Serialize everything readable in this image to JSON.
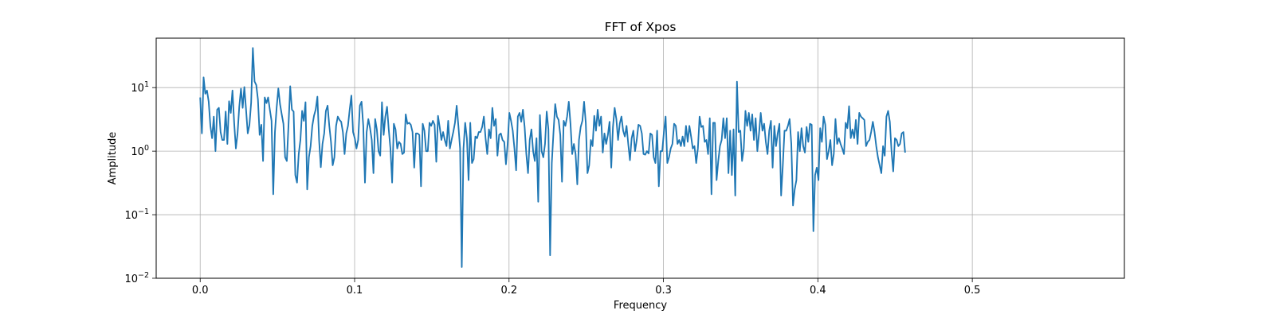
{
  "chart_data": {
    "type": "line",
    "title": "FFT of Xpos",
    "xlabel": "Frequency",
    "ylabel": "Amplitude",
    "xlim": [
      -0.0285,
      0.5985
    ],
    "ylim": [
      0.01,
      60
    ],
    "yscale": "log",
    "grid": true,
    "line_color": "#1f77b4",
    "x_ticks": [
      {
        "value": 0.0,
        "label": "0.0"
      },
      {
        "value": 0.1,
        "label": "0.1"
      },
      {
        "value": 0.2,
        "label": "0.2"
      },
      {
        "value": 0.3,
        "label": "0.3"
      },
      {
        "value": 0.4,
        "label": "0.4"
      },
      {
        "value": 0.5,
        "label": "0.5"
      }
    ],
    "y_ticks": [
      {
        "value": 0.01,
        "base": "10",
        "exp": "−2"
      },
      {
        "value": 0.1,
        "base": "10",
        "exp": "−1"
      },
      {
        "value": 1,
        "base": "10",
        "exp": "0"
      },
      {
        "value": 10,
        "base": "10",
        "exp": "1"
      }
    ],
    "x_step": 0.0011,
    "y_values": [
      7,
      1.9,
      14.5,
      8,
      9,
      6,
      2.5,
      1.6,
      3.5,
      1,
      4.5,
      4.8,
      2,
      1.5,
      1.5,
      4.2,
      1.3,
      6.1,
      4,
      9,
      2.8,
      1.1,
      1.9,
      5,
      9.6,
      4.8,
      10.2,
      4.5,
      1.9,
      2.6,
      5.8,
      42,
      12.5,
      11,
      6.5,
      1.8,
      2.6,
      0.7,
      7,
      5.7,
      7,
      4.5,
      3,
      0.21,
      2,
      4.8,
      9.7,
      5.5,
      3.8,
      2.7,
      0.8,
      0.7,
      2.6,
      10.5,
      4.5,
      4.2,
      0.42,
      0.32,
      0.9,
      1.5,
      4.3,
      3,
      5.9,
      0.25,
      0.8,
      1.2,
      2.5,
      3.6,
      4.5,
      7.2,
      1.5,
      0.56,
      1.3,
      1.9,
      4.3,
      5.2,
      2.5,
      1.4,
      0.6,
      0.8,
      2.5,
      3.5,
      3.1,
      2.9,
      2,
      0.9,
      1.9,
      2.5,
      4.5,
      7.5,
      2,
      1.6,
      1.1,
      1.5,
      5.2,
      6,
      2.5,
      0.32,
      2,
      3.2,
      2.3,
      1.5,
      0.45,
      3.2,
      2.2,
      1,
      0.85,
      5.9,
      1.8,
      3.5,
      5,
      2.2,
      1.1,
      0.32,
      2.7,
      2.2,
      1.1,
      1.4,
      1.3,
      0.9,
      0.95,
      3.8,
      2.7,
      2.8,
      2.6,
      2,
      0.55,
      1.9,
      1.9,
      1.8,
      0.28,
      2.7,
      2.1,
      1,
      1,
      2.8,
      2.5,
      3,
      2.6,
      0.68,
      3.6,
      2.4,
      1.5,
      2,
      1.5,
      1.2,
      3,
      1.1,
      1.5,
      2,
      2.8,
      5.2,
      2.5,
      1.1,
      0.015,
      1.1,
      2.8,
      1.6,
      0.35,
      2.8,
      0.65,
      0.75,
      1.7,
      1.6,
      2,
      2,
      2.4,
      3.5,
      1.6,
      0.9,
      2.2,
      1.6,
      4.8,
      2.5,
      3.2,
      0.85,
      1.8,
      1.9,
      1.5,
      1.4,
      0.62,
      1.3,
      4,
      3,
      2.1,
      1.1,
      0.5,
      3.5,
      4,
      2.9,
      4.5,
      2.4,
      0.9,
      0.45,
      1.5,
      2.2,
      1,
      0.7,
      1.6,
      0.16,
      3.7,
      1,
      0.8,
      1.3,
      4.2,
      2.2,
      0.023,
      0.65,
      2,
      5.5,
      3.5,
      3.1,
      1.8,
      0.33,
      3,
      2.5,
      3.5,
      6,
      2.7,
      0.9,
      1.3,
      0.9,
      0.3,
      1.5,
      2.4,
      3,
      6,
      2.8,
      0.45,
      0.6,
      1.5,
      1.2,
      3.6,
      2.1,
      4.5,
      2.5,
      3.5,
      0.95,
      1.9,
      1.3,
      1.8,
      2.9,
      0.55,
      2.4,
      4.8,
      3.2,
      1.5,
      2.7,
      3.5,
      2.1,
      1.7,
      2.5,
      1.3,
      0.72,
      1.6,
      2.1,
      1,
      1.5,
      2.6,
      2.5,
      1.9,
      0.9,
      0.88,
      1,
      0.92,
      1.9,
      1.8,
      0.8,
      0.65,
      2.1,
      0.28,
      1,
      1,
      2,
      3.5,
      0.65,
      0.8,
      1.1,
      1.3,
      2.7,
      2.5,
      1.3,
      1.5,
      1.2,
      1.7,
      1.2,
      2.5,
      1.4,
      2.5,
      1.7,
      1.1,
      1.2,
      0.65,
      1.1,
      3.5,
      2.4,
      2.5,
      1.4,
      1.5,
      0.9,
      3.3,
      0.21,
      2.8,
      2.8,
      0.35,
      0.7,
      1.2,
      1.5,
      3.3,
      1.6,
      3.3,
      0.45,
      2.1,
      0.42,
      2.2,
      0.2,
      12.4,
      2,
      2.1,
      0.7,
      1.1,
      4.3,
      2.5,
      4,
      2.1,
      3.8,
      1.5,
      3.3,
      1,
      1.9,
      4,
      2.1,
      2.7,
      1.4,
      0.9,
      2.1,
      3,
      0.55,
      2.5,
      1.2,
      1.9,
      2.7,
      0.2,
      0.6,
      2.1,
      2.1,
      2.5,
      3.2,
      1.3,
      0.14,
      0.25,
      0.35,
      2,
      1,
      2.3,
      1.2,
      0.95,
      2.4,
      1.4,
      2.7,
      2.6,
      0.055,
      0.42,
      0.55,
      0.35,
      2.3,
      1.4,
      3.5,
      2.6,
      0.75,
      1,
      1.5,
      0.6,
      0.9,
      3.2,
      1.3,
      1.6,
      1.3,
      1.1,
      0.9,
      2.8,
      2.3,
      5.1,
      1.6,
      2.2,
      1.6,
      3.1,
      1.3,
      4,
      3.5,
      3.3,
      3.1,
      1.2,
      1.4,
      1.5,
      2,
      2.9,
      2,
      1.2,
      0.8,
      0.6,
      0.45,
      1.2,
      0.85,
      3.5,
      4.3,
      2.9,
      1,
      0.48,
      1.6,
      1.5,
      1.2,
      1.3,
      1.9,
      2,
      0.95
    ]
  }
}
